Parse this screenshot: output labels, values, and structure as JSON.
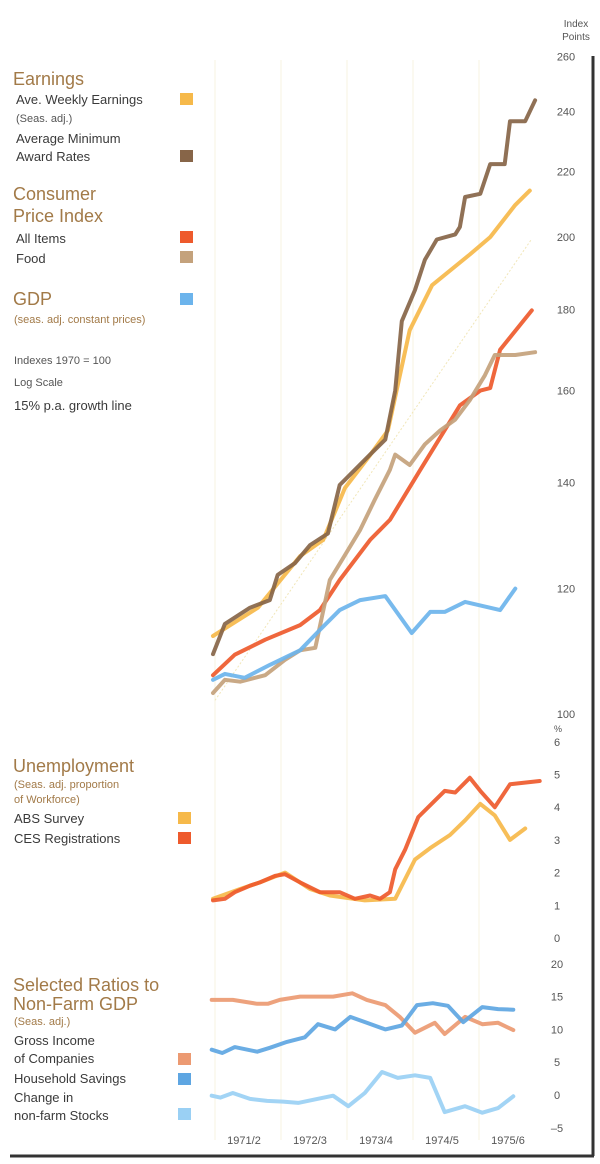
{
  "chart_data": [
    {
      "type": "line",
      "scale": "log",
      "axis_title": [
        "Index",
        "Points"
      ],
      "ylim": [
        100,
        260
      ],
      "yticks": [
        "260",
        "240",
        "220",
        "200",
        "180",
        "160",
        "140",
        "120",
        "100"
      ],
      "ytick_values": [
        260,
        240,
        220,
        200,
        180,
        160,
        140,
        120,
        100
      ],
      "notes": [
        "Indexes 1970 = 100",
        "Log Scale",
        "15% p.a. growth line"
      ],
      "growth_line": {
        "rate": 0.15,
        "start": [
          1971.5,
          102
        ]
      },
      "groups": [
        {
          "heading": [
            "Earnings"
          ]
        },
        {
          "heading": [
            "Consumer",
            "Price Index"
          ]
        },
        {
          "heading": [
            "GDP"
          ],
          "subheading": "(seas. adj. constant prices)"
        }
      ],
      "series": [
        {
          "name": "Ave. Weekly Earnings",
          "note": "(Seas. adj.)",
          "color": "#f6b94a",
          "points": [
            [
              1971.47,
              112
            ],
            [
              1972.15,
              116.7
            ],
            [
              1972.79,
              125.8
            ],
            [
              1973.14,
              128.8
            ],
            [
              1973.47,
              138.9
            ],
            [
              1973.85,
              145.7
            ],
            [
              1974.12,
              151
            ],
            [
              1974.45,
              174.7
            ],
            [
              1974.79,
              186.5
            ],
            [
              1975.36,
              195
            ],
            [
              1975.67,
              200
            ],
            [
              1976.05,
              209.6
            ],
            [
              1976.27,
              214
            ]
          ]
        },
        {
          "name": "Average Minimum Award Rates",
          "name_lines": [
            "Average Minimum",
            "Award Rates"
          ],
          "color": "#876548",
          "points": [
            [
              1971.47,
              109.1
            ],
            [
              1971.65,
              114
            ],
            [
              1972.03,
              116.7
            ],
            [
              1972.33,
              118
            ],
            [
              1972.45,
              122.4
            ],
            [
              1972.71,
              124.5
            ],
            [
              1972.94,
              127.8
            ],
            [
              1973.21,
              130
            ],
            [
              1973.39,
              139.5
            ],
            [
              1973.62,
              142.6
            ],
            [
              1973.85,
              145.8
            ],
            [
              1974.08,
              149
            ],
            [
              1974.23,
              160
            ],
            [
              1974.33,
              177
            ],
            [
              1974.53,
              185.2
            ],
            [
              1974.68,
              193.5
            ],
            [
              1974.86,
              199.3
            ],
            [
              1975.14,
              200.8
            ],
            [
              1975.21,
              203
            ],
            [
              1975.29,
              212
            ],
            [
              1975.52,
              213
            ],
            [
              1975.67,
              222.4
            ],
            [
              1975.89,
              222.4
            ],
            [
              1975.97,
              236.7
            ],
            [
              1976.2,
              236.7
            ],
            [
              1976.35,
              244
            ]
          ]
        },
        {
          "name": "All Items",
          "color": "#ee5a2c",
          "points": [
            [
              1971.47,
              105.8
            ],
            [
              1971.8,
              109
            ],
            [
              1972.26,
              111.4
            ],
            [
              1972.79,
              113.8
            ],
            [
              1973.09,
              116.3
            ],
            [
              1973.39,
              121.5
            ],
            [
              1973.85,
              128.8
            ],
            [
              1974.15,
              132.6
            ],
            [
              1974.61,
              142.6
            ],
            [
              1975.21,
              156.6
            ],
            [
              1975.52,
              160
            ],
            [
              1975.67,
              160.6
            ],
            [
              1975.82,
              169.8
            ],
            [
              1976.3,
              179.8
            ]
          ]
        },
        {
          "name": "Food",
          "color": "#c4a27c",
          "points": [
            [
              1971.47,
              103.1
            ],
            [
              1971.65,
              105.1
            ],
            [
              1971.88,
              104.8
            ],
            [
              1972.26,
              105.8
            ],
            [
              1972.56,
              108.2
            ],
            [
              1972.79,
              109.7
            ],
            [
              1973.02,
              110.1
            ],
            [
              1973.24,
              121.5
            ],
            [
              1973.47,
              126
            ],
            [
              1973.7,
              130.7
            ],
            [
              1973.92,
              136.5
            ],
            [
              1974.15,
              142.6
            ],
            [
              1974.23,
              145.8
            ],
            [
              1974.45,
              143.6
            ],
            [
              1974.68,
              148
            ],
            [
              1974.91,
              151
            ],
            [
              1975.14,
              153.4
            ],
            [
              1975.36,
              157.8
            ],
            [
              1975.59,
              163.6
            ],
            [
              1975.74,
              168.5
            ],
            [
              1976.05,
              168.5
            ],
            [
              1976.35,
              169.2
            ]
          ]
        },
        {
          "name": "GDP",
          "color": "#6cb4ec",
          "points": [
            [
              1971.47,
              105.1
            ],
            [
              1971.65,
              106
            ],
            [
              1971.95,
              105.4
            ],
            [
              1972.33,
              107.4
            ],
            [
              1972.79,
              109.7
            ],
            [
              1973.09,
              113
            ],
            [
              1973.39,
              116.3
            ],
            [
              1973.7,
              118
            ],
            [
              1974.08,
              118.7
            ],
            [
              1974.48,
              112.5
            ],
            [
              1974.76,
              116
            ],
            [
              1974.98,
              116
            ],
            [
              1975.29,
              117.7
            ],
            [
              1975.82,
              116.3
            ],
            [
              1976.05,
              120
            ]
          ]
        }
      ]
    },
    {
      "type": "line",
      "heading": "Unemployment",
      "subheading": [
        "(Seas. adj. proportion",
        "of Workforce)"
      ],
      "unit": "%",
      "ylim": [
        0,
        6
      ],
      "yticks": [
        "6",
        "5",
        "4",
        "3",
        "2",
        "1",
        "0"
      ],
      "ytick_values": [
        6,
        5,
        4,
        3,
        2,
        1,
        0
      ],
      "series": [
        {
          "name": "ABS Survey",
          "color": "#f6b94a",
          "points": [
            [
              1971.47,
              1.2
            ],
            [
              1971.88,
              1.5
            ],
            [
              1972.18,
              1.7
            ],
            [
              1972.56,
              2.0
            ],
            [
              1972.94,
              1.5
            ],
            [
              1973.24,
              1.3
            ],
            [
              1973.77,
              1.15
            ],
            [
              1974.23,
              1.2
            ],
            [
              1974.53,
              2.4
            ],
            [
              1974.76,
              2.75
            ],
            [
              1975.06,
              3.15
            ],
            [
              1975.29,
              3.6
            ],
            [
              1975.52,
              4.1
            ],
            [
              1975.74,
              3.75
            ],
            [
              1975.97,
              3.0
            ],
            [
              1976.2,
              3.35
            ]
          ]
        },
        {
          "name": "CES Registrations",
          "color": "#ee5a2c",
          "points": [
            [
              1971.47,
              1.15
            ],
            [
              1971.65,
              1.2
            ],
            [
              1971.8,
              1.4
            ],
            [
              1972.03,
              1.6
            ],
            [
              1972.18,
              1.7
            ],
            [
              1972.41,
              1.9
            ],
            [
              1972.56,
              1.95
            ],
            [
              1972.79,
              1.7
            ],
            [
              1973.09,
              1.4
            ],
            [
              1973.39,
              1.4
            ],
            [
              1973.62,
              1.2
            ],
            [
              1973.85,
              1.3
            ],
            [
              1974.0,
              1.2
            ],
            [
              1974.15,
              1.4
            ],
            [
              1974.23,
              2.1
            ],
            [
              1974.38,
              2.7
            ],
            [
              1974.58,
              3.7
            ],
            [
              1974.83,
              4.2
            ],
            [
              1974.98,
              4.5
            ],
            [
              1975.14,
              4.45
            ],
            [
              1975.36,
              4.9
            ],
            [
              1975.52,
              4.5
            ],
            [
              1975.74,
              4.0
            ],
            [
              1975.97,
              4.7
            ],
            [
              1976.42,
              4.8
            ]
          ]
        }
      ]
    },
    {
      "type": "line",
      "heading": [
        "Selected Ratios to",
        "Non-Farm GDP"
      ],
      "subheading": "(Seas. adj.)",
      "ylim": [
        -5,
        20
      ],
      "yticks": [
        "20",
        "15",
        "10",
        "5",
        "0",
        "–5"
      ],
      "ytick_values": [
        20,
        15,
        10,
        5,
        0,
        -5
      ],
      "xticks": [
        "1971/2",
        "1972/3",
        "1973/4",
        "1974/5",
        "1975/6"
      ],
      "xtick_values": [
        1972,
        1973,
        1974,
        1975,
        1976
      ],
      "series": [
        {
          "name": "Gross Income of Companies",
          "name_lines": [
            "Gross Income",
            "of Companies"
          ],
          "color": "#ec9a72",
          "points": [
            [
              1971.45,
              14.5
            ],
            [
              1971.77,
              14.5
            ],
            [
              1972.14,
              13.9
            ],
            [
              1972.3,
              13.9
            ],
            [
              1972.48,
              14.5
            ],
            [
              1972.79,
              15
            ],
            [
              1973.29,
              15
            ],
            [
              1973.58,
              15.5
            ],
            [
              1973.8,
              14.5
            ],
            [
              1974.08,
              13.7
            ],
            [
              1974.3,
              11.9
            ],
            [
              1974.53,
              9.5
            ],
            [
              1974.83,
              11
            ],
            [
              1974.98,
              9.3
            ],
            [
              1975.29,
              11.9
            ],
            [
              1975.55,
              10.8
            ],
            [
              1975.79,
              11
            ],
            [
              1976.02,
              9.9
            ]
          ]
        },
        {
          "name": "Household Savings",
          "color": "#5ea6e2",
          "points": [
            [
              1971.45,
              6.9
            ],
            [
              1971.61,
              6.4
            ],
            [
              1971.8,
              7.3
            ],
            [
              1972.14,
              6.6
            ],
            [
              1972.33,
              7.2
            ],
            [
              1972.59,
              8.1
            ],
            [
              1972.86,
              8.8
            ],
            [
              1973.06,
              10.8
            ],
            [
              1973.32,
              10
            ],
            [
              1973.55,
              11.9
            ],
            [
              1973.8,
              11
            ],
            [
              1974.08,
              10
            ],
            [
              1974.33,
              10.6
            ],
            [
              1974.56,
              13.7
            ],
            [
              1974.8,
              14
            ],
            [
              1975.03,
              13.6
            ],
            [
              1975.26,
              11.1
            ],
            [
              1975.55,
              13.4
            ],
            [
              1975.79,
              13.1
            ],
            [
              1976.02,
              13
            ]
          ]
        },
        {
          "name": "Change in non-farm Stocks",
          "name_lines": [
            "Change in",
            "non-farm Stocks"
          ],
          "color": "#9ad0f4",
          "points": [
            [
              1971.45,
              -0.1
            ],
            [
              1971.58,
              -0.4
            ],
            [
              1971.77,
              0.3
            ],
            [
              1972.03,
              -0.6
            ],
            [
              1972.29,
              -0.9
            ],
            [
              1972.53,
              -1.0
            ],
            [
              1972.76,
              -1.2
            ],
            [
              1973.05,
              -0.6
            ],
            [
              1973.29,
              -0.1
            ],
            [
              1973.52,
              -1.7
            ],
            [
              1973.77,
              0.3
            ],
            [
              1974.03,
              3.5
            ],
            [
              1974.27,
              2.6
            ],
            [
              1974.53,
              3.0
            ],
            [
              1974.76,
              2.6
            ],
            [
              1974.98,
              -2.6
            ],
            [
              1975.29,
              -1.7
            ],
            [
              1975.55,
              -2.7
            ],
            [
              1975.79,
              -2.0
            ],
            [
              1976.02,
              -0.2
            ]
          ]
        }
      ]
    }
  ]
}
